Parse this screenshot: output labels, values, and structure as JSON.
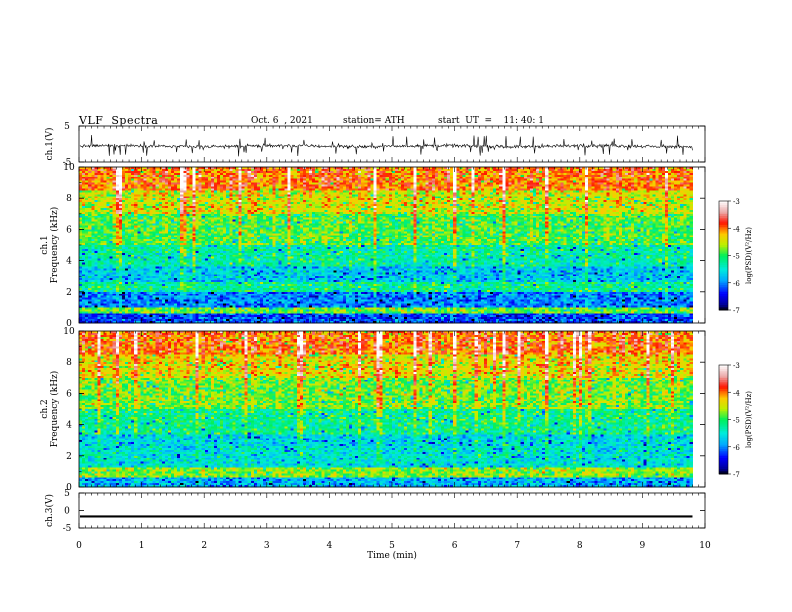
{
  "header": {
    "title": "VLF  Spectra",
    "date": "Oct. 6  , 2021",
    "station": "station= ATH",
    "start": "start  UT  =    11: 40: 1"
  },
  "chart_data": [
    {
      "type": "line",
      "panel": "ch1-waveform",
      "ylabel": "ch.1(V)",
      "ylim": [
        -5,
        5
      ],
      "yticks": [
        5,
        -5
      ],
      "xlim": [
        0,
        10
      ],
      "x_extent_min": 9.8,
      "baseline_v": -0.6,
      "spike_range_v": [
        -3.6,
        2.6
      ],
      "color": "#000000"
    },
    {
      "type": "heatmap",
      "panel": "ch1-spectrogram",
      "ylabel": "ch.1\nFrequency (kHz)",
      "ylim": [
        0,
        10
      ],
      "yticks": [
        0,
        2,
        4,
        6,
        8,
        10
      ],
      "xlim": [
        0,
        10
      ],
      "x_extent_min": 9.8,
      "colorbar": {
        "label": "log(PSD)(V²/Hz)",
        "range": [
          -7,
          -3
        ],
        "ticks": [
          "-3",
          "-4",
          "-5",
          "-6",
          "-7"
        ]
      },
      "bands": [
        {
          "f_khz": [
            0,
            0.6
          ],
          "level": -6.2
        },
        {
          "f_khz": [
            0.6,
            1.0
          ],
          "level": -4.8
        },
        {
          "f_khz": [
            1.0,
            2.0
          ],
          "level": -6.0
        },
        {
          "f_khz": [
            2.0,
            2.6
          ],
          "level": -5.2
        },
        {
          "f_khz": [
            2.6,
            3.6
          ],
          "level": -5.7
        },
        {
          "f_khz": [
            3.6,
            5.0
          ],
          "level": -5.3
        },
        {
          "f_khz": [
            5.0,
            7.0
          ],
          "level": -4.9
        },
        {
          "f_khz": [
            7.0,
            8.5
          ],
          "level": -4.5
        },
        {
          "f_khz": [
            8.5,
            10.0
          ],
          "level": -4.0
        }
      ]
    },
    {
      "type": "heatmap",
      "panel": "ch2-spectrogram",
      "ylabel": "ch.2\nFrequency (kHz)",
      "ylim": [
        0,
        10
      ],
      "yticks": [
        0,
        2,
        4,
        6,
        8,
        10
      ],
      "xlim": [
        0,
        10
      ],
      "x_extent_min": 9.8,
      "colorbar": {
        "label": "log(PSD)(V²/Hz)",
        "range": [
          -7,
          -3
        ],
        "ticks": [
          "-3",
          "-4",
          "-5",
          "-6",
          "-7"
        ]
      },
      "bands": [
        {
          "f_khz": [
            0,
            0.6
          ],
          "level": -5.8
        },
        {
          "f_khz": [
            0.6,
            1.2
          ],
          "level": -4.7
        },
        {
          "f_khz": [
            1.2,
            2.6
          ],
          "level": -5.5
        },
        {
          "f_khz": [
            2.6,
            3.4
          ],
          "level": -5.6
        },
        {
          "f_khz": [
            3.4,
            5.0
          ],
          "level": -5.2
        },
        {
          "f_khz": [
            5.0,
            7.0
          ],
          "level": -4.8
        },
        {
          "f_khz": [
            7.0,
            8.5
          ],
          "level": -4.4
        },
        {
          "f_khz": [
            8.5,
            10.0
          ],
          "level": -4.0
        }
      ]
    },
    {
      "type": "line",
      "panel": "ch3-waveform",
      "ylabel": "ch.3(V)",
      "ylim": [
        -5,
        5
      ],
      "yticks": [
        5,
        0,
        -5
      ],
      "xlim": [
        0,
        10
      ],
      "x_extent_min": 9.8,
      "baseline_v": -1.7,
      "band_half_width_v": 0.3,
      "color": "#000000"
    }
  ],
  "xaxis": {
    "label": "Time  (min)",
    "ticks": [
      "0",
      "1",
      "2",
      "3",
      "4",
      "5",
      "6",
      "7",
      "8",
      "9",
      "10"
    ]
  }
}
